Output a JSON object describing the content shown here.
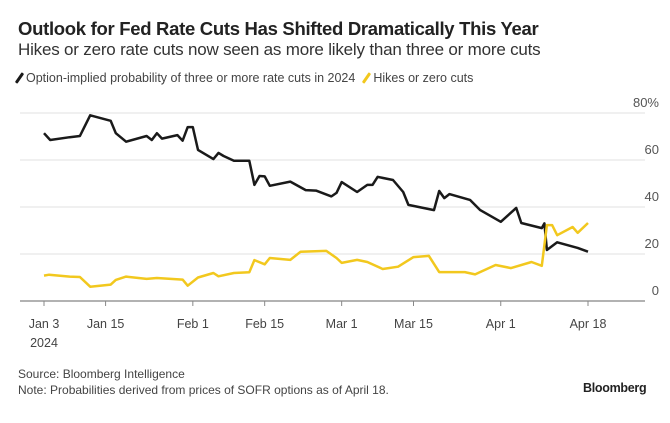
{
  "chart_data": {
    "type": "line",
    "title": "Outlook for Fed Rate Cuts Has Shifted Dramatically This Year",
    "subtitle": "Hikes or zero rate cuts now seen as more likely than three or more cuts",
    "xlabel": "",
    "ylabel": "",
    "ylim": [
      0,
      80
    ],
    "y_ticks": [
      {
        "v": 80,
        "label": "80%"
      },
      {
        "v": 60,
        "label": "60"
      },
      {
        "v": 40,
        "label": "40"
      },
      {
        "v": 20,
        "label": "20"
      },
      {
        "v": 0,
        "label": "0"
      }
    ],
    "x_unit": "day of year 2024",
    "xlim": [
      3,
      109
    ],
    "x_ticks": [
      {
        "v": 3,
        "label": "Jan 3",
        "sub": "2024"
      },
      {
        "v": 15,
        "label": "Jan 15"
      },
      {
        "v": 32,
        "label": "Feb 1"
      },
      {
        "v": 46,
        "label": "Feb 15"
      },
      {
        "v": 61,
        "label": "Mar 1"
      },
      {
        "v": 75,
        "label": "Mar 15"
      },
      {
        "v": 92,
        "label": "Apr 1"
      },
      {
        "v": 109,
        "label": "Apr 18"
      }
    ],
    "grid": true,
    "legend_position": "top-left",
    "series": [
      {
        "name": "Option-implied probability of three or more rate cuts in 2024",
        "color": "#1a1a1a",
        "x": [
          3,
          4.2,
          8,
          10,
          12,
          16,
          17,
          19,
          23,
          24,
          25,
          26,
          29,
          30,
          31,
          32,
          33,
          36,
          37,
          38,
          40,
          43,
          44,
          45,
          46,
          47,
          51,
          54,
          56,
          59,
          60,
          61,
          64,
          66,
          67,
          68,
          71,
          73,
          74,
          79,
          80,
          81,
          82,
          86,
          88,
          92,
          95,
          96,
          100,
          100.5,
          101,
          103,
          107,
          109
        ],
        "y": [
          71.4,
          68.5,
          69.7,
          70.2,
          79,
          76.7,
          71.4,
          67.8,
          70.2,
          68.5,
          71.4,
          69.1,
          70.6,
          68.2,
          74,
          74,
          64.3,
          60.4,
          63,
          61.7,
          59.7,
          59.7,
          49.4,
          53.2,
          53,
          49,
          50.8,
          47.2,
          47,
          44.5,
          46,
          50.6,
          46.4,
          49.4,
          49.4,
          52.8,
          51.5,
          46.4,
          40.9,
          38.7,
          46.8,
          43.8,
          45.5,
          43,
          38.7,
          33.7,
          39.6,
          33.2,
          31,
          33,
          21.7,
          25,
          22.6,
          21
        ]
      },
      {
        "name": "Hikes or zero cuts",
        "color": "#f2c81e",
        "x": [
          3,
          4,
          8,
          10,
          12,
          16,
          17,
          19,
          23,
          25,
          30,
          31,
          33,
          36,
          37,
          40,
          43,
          44,
          46,
          47,
          51,
          53,
          58,
          60,
          61,
          64,
          66,
          69,
          72,
          75,
          78,
          80,
          85,
          87,
          91,
          94,
          98,
          100,
          101,
          102,
          103,
          106,
          107,
          109
        ],
        "y": [
          10.8,
          11.2,
          10.4,
          10.2,
          6.1,
          7,
          9,
          10.4,
          9.4,
          9.8,
          9.1,
          6.5,
          10,
          11.9,
          10.5,
          11.9,
          12.2,
          17.4,
          15.6,
          18.3,
          17.5,
          21,
          21.3,
          18.3,
          16.2,
          17.5,
          16.6,
          13.6,
          14.6,
          18.7,
          19.2,
          12.3,
          12.3,
          11.3,
          15.3,
          14,
          16.6,
          15,
          32.3,
          32.3,
          28,
          31.5,
          29,
          33.2
        ]
      }
    ]
  },
  "footer": {
    "source": "Source: Bloomberg Intelligence",
    "note": "Note: Probabilities derived from prices of SOFR options as of April 18.",
    "logo": "Bloomberg"
  }
}
